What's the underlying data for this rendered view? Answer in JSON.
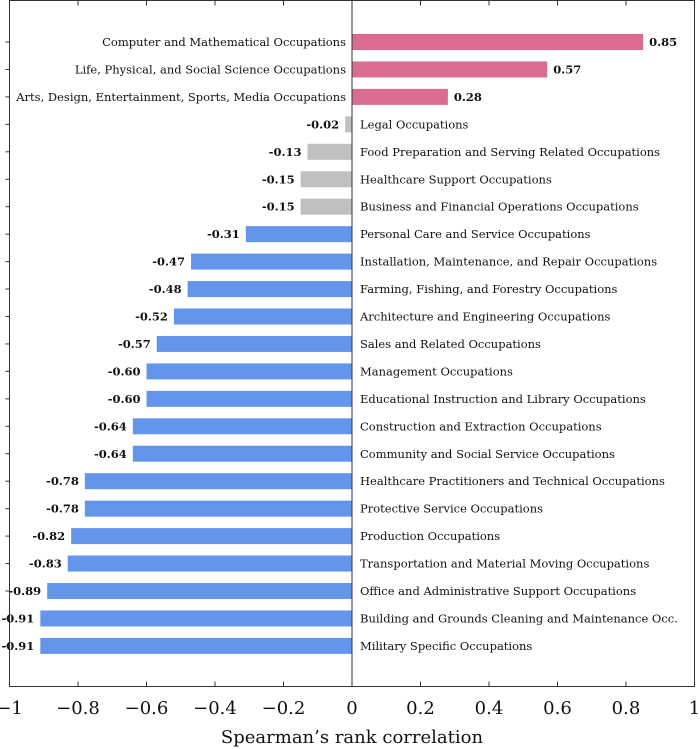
{
  "chart_data": {
    "type": "bar",
    "orientation": "horizontal",
    "xlabel": "Spearman’s rank correlation",
    "xlim": [
      -1,
      1
    ],
    "xticks": [
      -1,
      -0.8,
      -0.6,
      -0.4,
      -0.2,
      0,
      0.2,
      0.4,
      0.6,
      0.8,
      1
    ],
    "xtick_labels": [
      "−1",
      "−0.8",
      "−0.6",
      "−0.4",
      "−0.2",
      "0",
      "0.2",
      "0.4",
      "0.6",
      "0.8",
      "1"
    ],
    "grid": false,
    "categories": [
      "Computer and Mathematical Occupations",
      "Life, Physical, and Social Science Occupations",
      "Arts, Design, Entertainment, Sports, Media Occupations",
      "Legal Occupations",
      "Food Preparation and Serving Related Occupations",
      "Healthcare Support Occupations",
      "Business and Financial Operations Occupations",
      "Personal Care and Service Occupations",
      "Installation, Maintenance, and Repair Occupations",
      "Farming, Fishing, and Forestry Occupations",
      "Architecture and Engineering Occupations",
      "Sales and Related Occupations",
      "Management Occupations",
      "Educational Instruction and Library Occupations",
      "Construction and Extraction Occupations",
      "Community and Social Service Occupations",
      "Healthcare Practitioners and Technical Occupations",
      "Protective Service Occupations",
      "Production Occupations",
      "Transportation and Material Moving Occupations",
      "Office and Administrative Support Occupations",
      "Building and Grounds Cleaning and Maintenance Occ.",
      "Military Specific Occupations"
    ],
    "values": [
      0.85,
      0.57,
      0.28,
      -0.02,
      -0.13,
      -0.15,
      -0.15,
      -0.31,
      -0.47,
      -0.48,
      -0.52,
      -0.57,
      -0.6,
      -0.6,
      -0.64,
      -0.64,
      -0.78,
      -0.78,
      -0.82,
      -0.83,
      -0.89,
      -0.91,
      -0.91
    ],
    "value_labels": [
      "0.85",
      "0.57",
      "0.28",
      "-0.02",
      "-0.13",
      "-0.15",
      "-0.15",
      "-0.31",
      "-0.47",
      "-0.48",
      "-0.52",
      "-0.57",
      "-0.60",
      "-0.60",
      "-0.64",
      "-0.64",
      "-0.78",
      "-0.78",
      "-0.82",
      "-0.83",
      "-0.89",
      "-0.91",
      "-0.91"
    ],
    "colors": {
      "positive": "#dc6b93",
      "neutral": "#c0c0c0",
      "negative": "#6495ec",
      "neutral_threshold": 0.2
    }
  }
}
